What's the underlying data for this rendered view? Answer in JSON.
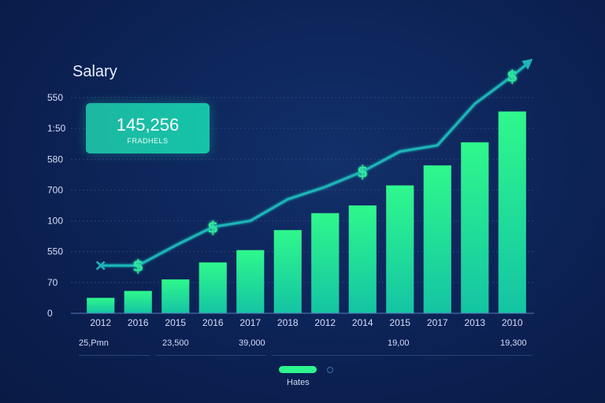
{
  "chart_data": {
    "type": "bar",
    "title": "Salary",
    "y_tick_labels": [
      "550",
      "1:50",
      "580",
      "700",
      "100",
      "550",
      "70",
      "0"
    ],
    "categories": [
      "2012",
      "2016",
      "2015",
      "2016",
      "2017",
      "2018",
      "2012",
      "2014",
      "2015",
      "2017",
      "2013",
      "2010"
    ],
    "values": [
      20,
      29,
      44,
      66,
      82,
      108,
      130,
      140,
      166,
      192,
      222,
      262
    ],
    "ylim": [
      0,
      280
    ],
    "trend_line": [
      62,
      62,
      88,
      112,
      120,
      148,
      164,
      184,
      210,
      218,
      272,
      308
    ],
    "dollar_markers_at": [
      1,
      3,
      7,
      11
    ],
    "xlabel": "",
    "ylabel": ""
  },
  "kpi": {
    "value": "145,256",
    "label": "FRADHELS"
  },
  "sub_values": [
    "25,Pmn",
    "23,500",
    "39,000",
    "19,00",
    "19,300"
  ],
  "legend": {
    "label": "Hates"
  },
  "colors": {
    "bar_top": "#2ff88c",
    "bar_bottom": "#14c4a4",
    "trend": "#1fb6b8",
    "accent": "#2de6a0"
  }
}
